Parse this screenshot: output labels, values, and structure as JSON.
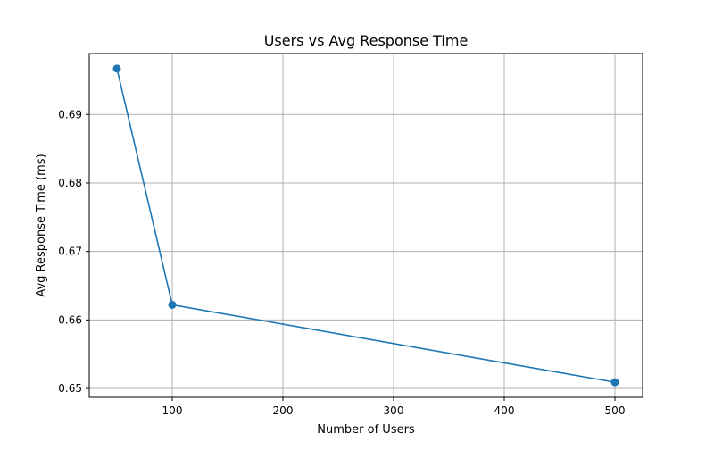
{
  "chart_data": {
    "type": "line",
    "title": "Users vs Avg Response Time",
    "xlabel": "Number of Users",
    "ylabel": "Avg Response Time (ms)",
    "x": [
      50,
      100,
      500
    ],
    "series": [
      {
        "values": [
          0.6967,
          0.6622,
          0.6509
        ]
      }
    ],
    "xlim": [
      25,
      525
    ],
    "ylim": [
      0.6487,
      0.6989
    ],
    "xticks": [
      100,
      200,
      300,
      400,
      500
    ],
    "yticks": [
      0.65,
      0.66,
      0.67,
      0.68,
      0.69
    ],
    "xtick_labels": [
      "100",
      "200",
      "300",
      "400",
      "500"
    ],
    "ytick_labels": [
      "0.65",
      "0.66",
      "0.67",
      "0.68",
      "0.69"
    ],
    "grid": true,
    "markers": true,
    "line_color": "#1f77b4",
    "grid_color": "#b0b0b0"
  }
}
